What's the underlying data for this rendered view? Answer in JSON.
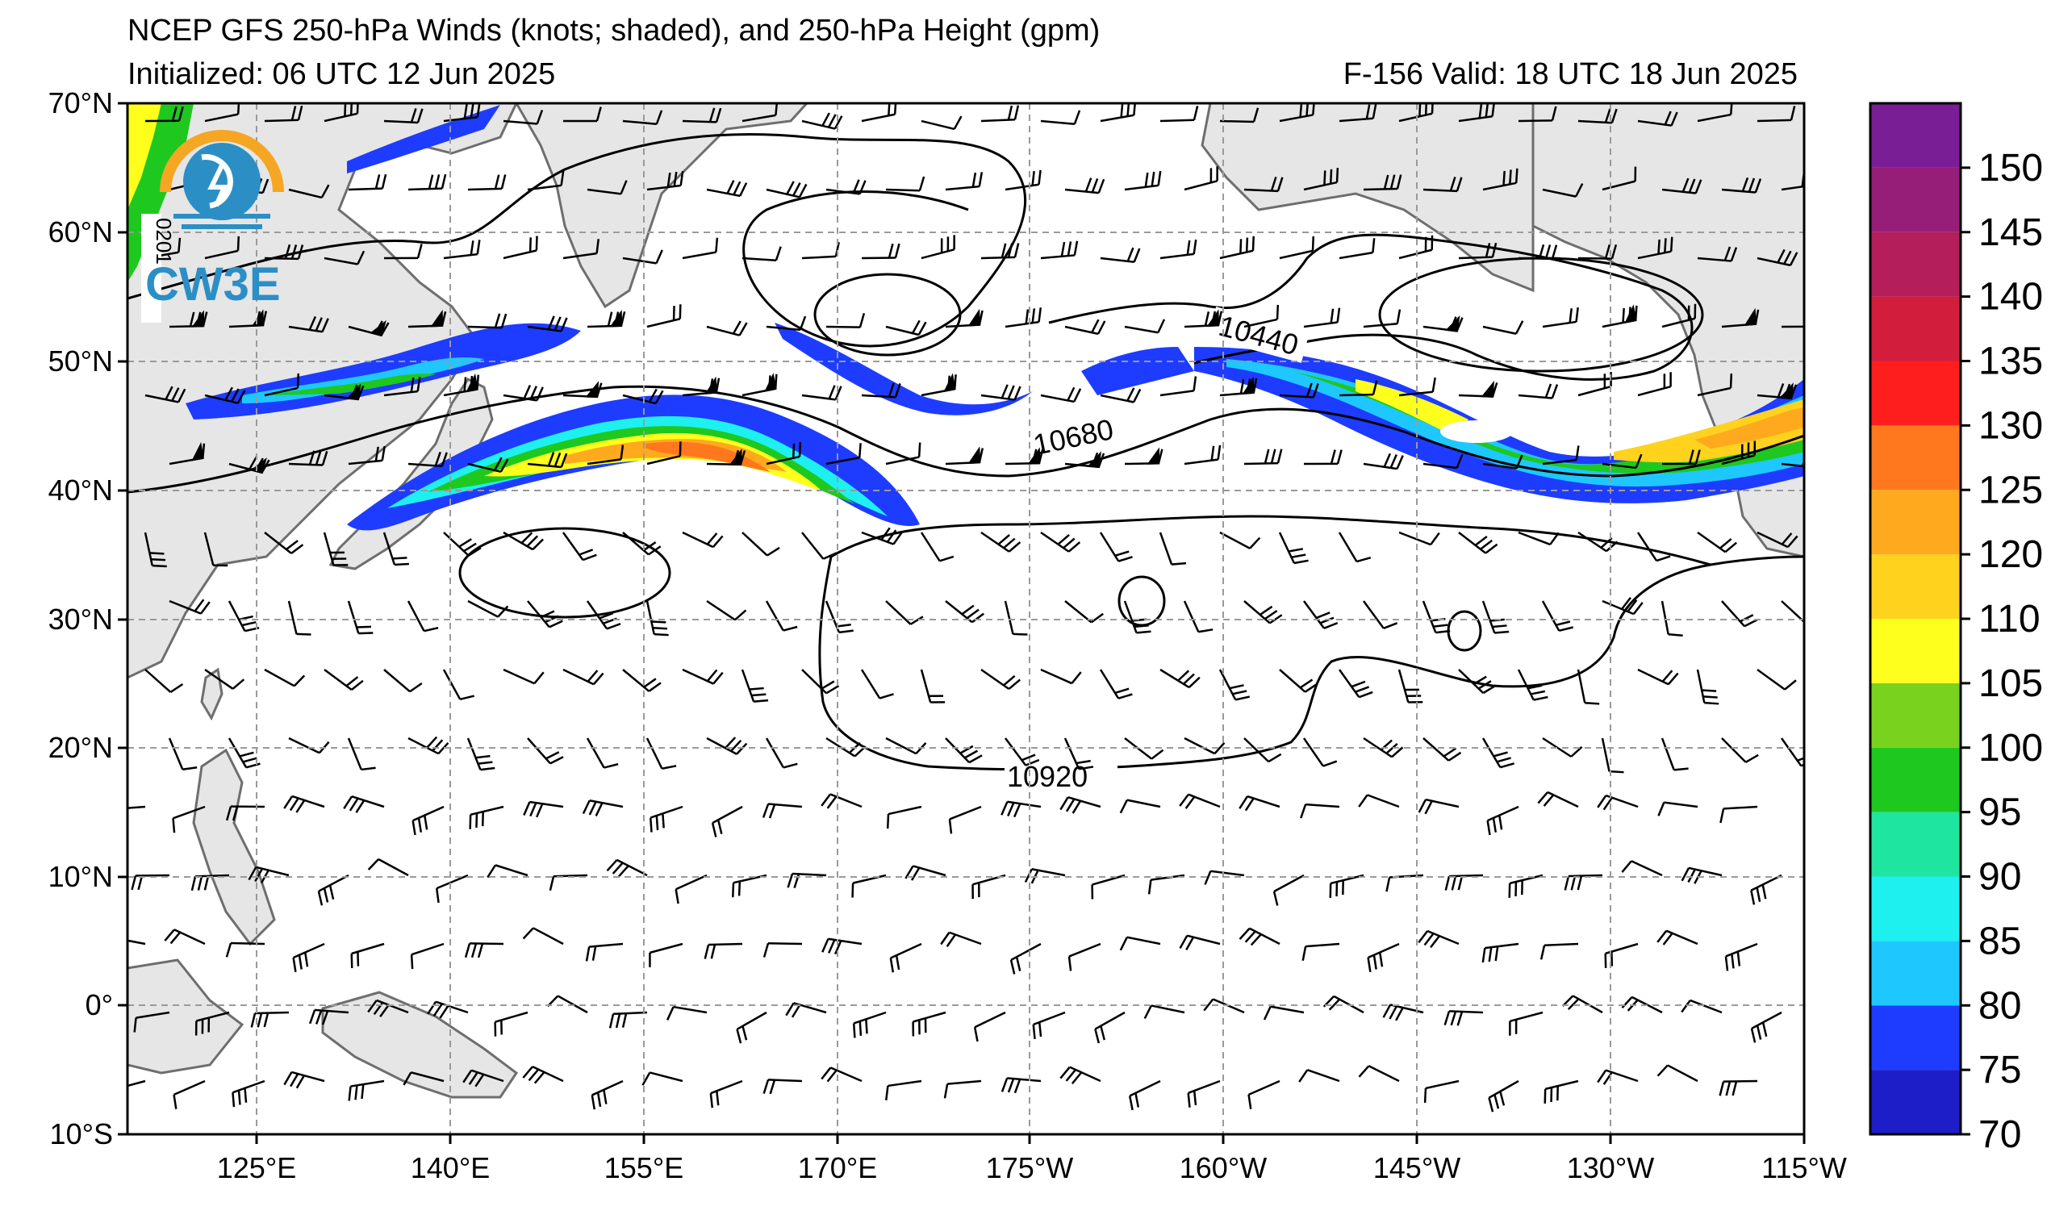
{
  "title": {
    "line1": "NCEP GFS 250-hPa Winds (knots; shaded), and 250-hPa Height (gpm)",
    "initialized": "Initialized: 06 UTC 12 Jun 2025",
    "valid": "F-156  Valid: 18 UTC 18 Jun 2025"
  },
  "logo": {
    "text": "CW3E",
    "side_text": "0201"
  },
  "axes": {
    "lat_labels": [
      "70°N",
      "60°N",
      "50°N",
      "40°N",
      "30°N",
      "20°N",
      "10°N",
      "0°",
      "10°S"
    ],
    "lon_labels": [
      "125°E",
      "140°E",
      "155°E",
      "170°E",
      "175°W",
      "160°W",
      "145°W",
      "130°W",
      "115°W"
    ]
  },
  "contour_labels": [
    "10440",
    "10680",
    "10920"
  ],
  "colorbar": {
    "labels": [
      "70",
      "75",
      "80",
      "85",
      "90",
      "95",
      "100",
      "105",
      "110",
      "120",
      "125",
      "130",
      "135",
      "140",
      "145",
      "150"
    ],
    "colors": [
      "#1e1ec8",
      "#1e3cff",
      "#1ec8ff",
      "#1ef0f0",
      "#1ee6a0",
      "#1ec81e",
      "#78d21e",
      "#ffff1e",
      "#ffd21e",
      "#ffaa1e",
      "#ff781e",
      "#ff1e1e",
      "#d21e3c",
      "#b41e5a",
      "#961e78",
      "#7a1e96"
    ]
  },
  "colors": {
    "land": "#e6e6e6",
    "coast": "#6e6e6e",
    "grid": "#9a9a9a"
  }
}
